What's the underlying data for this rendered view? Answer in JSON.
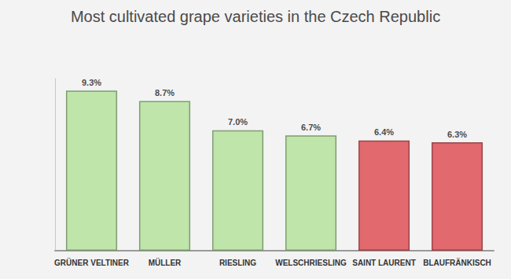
{
  "chart_data": {
    "type": "bar",
    "title": "Most cultivated grape varieties in the Czech Republic",
    "categories": [
      "GRÜNER VELTINER",
      "MÜLLER",
      "RIESLING",
      "WELSCHRIESLING",
      "SAINT LAURENT",
      "BLAUFRÄNKISCH"
    ],
    "values": [
      9.3,
      8.7,
      7.0,
      6.7,
      6.4,
      6.3
    ],
    "value_labels": [
      "9.3%",
      "8.7%",
      "7.0%",
      "6.7%",
      "6.4%",
      "6.3%"
    ],
    "colors": [
      "#b9e3a3",
      "#b9e3a3",
      "#b9e3a3",
      "#b9e3a3",
      "#e05a5f",
      "#e05a5f"
    ],
    "ylim": [
      0,
      10
    ],
    "data_labels": true,
    "tick_labels": "x",
    "grid": false
  }
}
